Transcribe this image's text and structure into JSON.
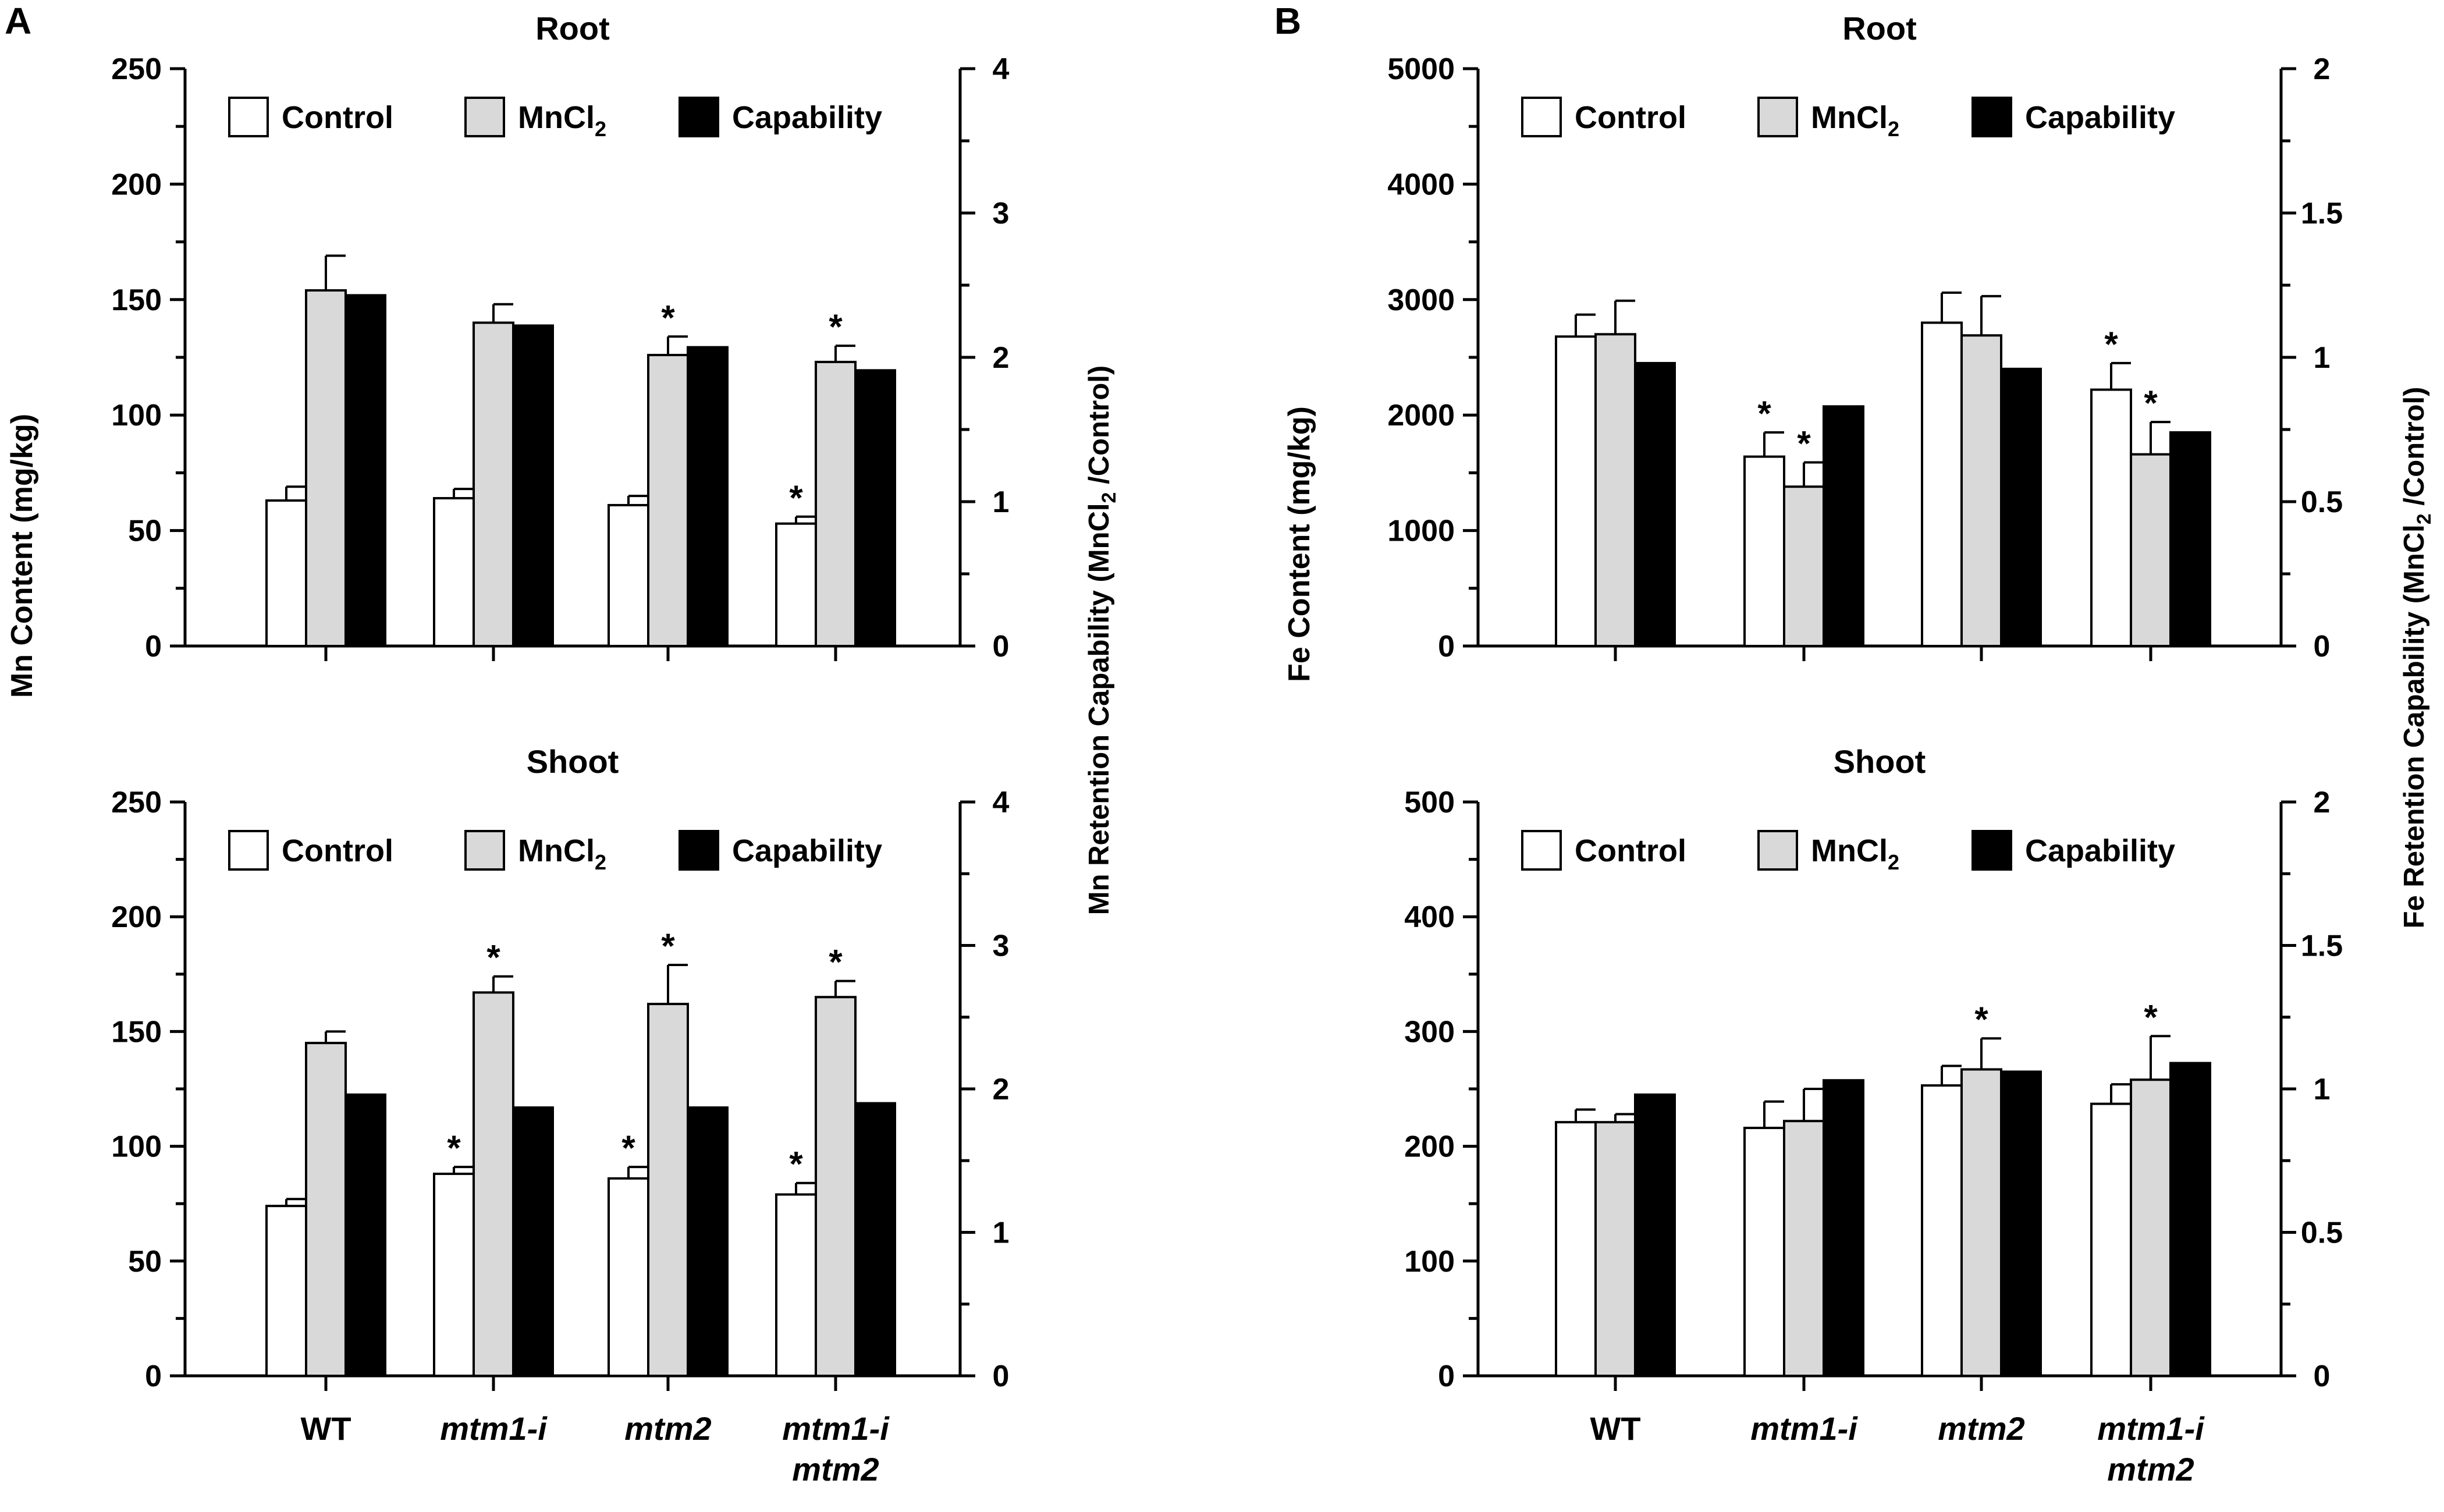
{
  "panel_labels": [
    "A",
    "B"
  ],
  "legend": {
    "control": "Control",
    "mncl2_base": "MnCl",
    "mncl2_sub": "2",
    "capability": "Capability"
  },
  "colors": {
    "control": "#ffffff",
    "mncl2": "#d9d9d9",
    "capability": "#000000",
    "axis": "#000000"
  },
  "genotypes": [
    {
      "line1": "WT",
      "line2": "",
      "italic": false
    },
    {
      "line1": "mtm1-i",
      "line2": "",
      "italic": true
    },
    {
      "line1": "mtm2",
      "line2": "",
      "italic": true
    },
    {
      "line1": "mtm1-i",
      "line2": "mtm2",
      "italic": true
    }
  ],
  "y_labels": {
    "mn_left": "Mn  Content (mg/kg)",
    "mn_right_a": "Mn Retention Capability (MnCl",
    "mn_right_sub": "2",
    "mn_right_b": " /Control)",
    "fe_left": "Fe Content (mg/kg)",
    "fe_right_a": "Fe Retention Capability (MnCl",
    "fe_right_sub": "2",
    "fe_right_b": " /Control)"
  },
  "chart_data": [
    {
      "id": "A-root",
      "panel": "A",
      "type": "bar",
      "title": "Root",
      "categories": [
        "WT",
        "mtm1-i",
        "mtm2",
        "mtm1-i mtm2"
      ],
      "ylim_left": [
        0,
        250
      ],
      "yticks_left": [
        0,
        50,
        100,
        150,
        200,
        250
      ],
      "ylim_right": [
        0,
        4
      ],
      "yticks_right": [
        0,
        1,
        2,
        3,
        4
      ],
      "series": [
        {
          "name": "Control",
          "axis": "left",
          "values": [
            63,
            64,
            61,
            53
          ],
          "errors": [
            6,
            4,
            4,
            3
          ],
          "significant": [
            false,
            false,
            false,
            true
          ]
        },
        {
          "name": "MnCl2",
          "axis": "left",
          "values": [
            154,
            140,
            126,
            123
          ],
          "errors": [
            15,
            8,
            8,
            7
          ],
          "significant": [
            false,
            false,
            true,
            true
          ]
        },
        {
          "name": "Capability",
          "axis": "right",
          "values": [
            2.43,
            2.22,
            2.07,
            1.91
          ],
          "errors": [
            0,
            0,
            0,
            0
          ],
          "significant": [
            false,
            false,
            false,
            false
          ]
        }
      ]
    },
    {
      "id": "A-shoot",
      "panel": "A",
      "type": "bar",
      "title": "Shoot",
      "categories": [
        "WT",
        "mtm1-i",
        "mtm2",
        "mtm1-i mtm2"
      ],
      "ylim_left": [
        0,
        250
      ],
      "yticks_left": [
        0,
        50,
        100,
        150,
        200,
        250
      ],
      "ylim_right": [
        0,
        4
      ],
      "yticks_right": [
        0,
        1,
        2,
        3,
        4
      ],
      "series": [
        {
          "name": "Control",
          "axis": "left",
          "values": [
            74,
            88,
            86,
            79
          ],
          "errors": [
            3,
            3,
            5,
            5
          ],
          "significant": [
            false,
            true,
            true,
            true
          ]
        },
        {
          "name": "MnCl2",
          "axis": "left",
          "values": [
            145,
            167,
            162,
            165
          ],
          "errors": [
            5,
            7,
            17,
            7
          ],
          "significant": [
            false,
            true,
            true,
            true
          ]
        },
        {
          "name": "Capability",
          "axis": "right",
          "values": [
            1.96,
            1.87,
            1.87,
            1.9
          ],
          "errors": [
            0,
            0,
            0,
            0
          ],
          "significant": [
            false,
            false,
            false,
            false
          ]
        }
      ]
    },
    {
      "id": "B-root",
      "panel": "B",
      "type": "bar",
      "title": "Root",
      "categories": [
        "WT",
        "mtm1-i",
        "mtm2",
        "mtm1-i mtm2"
      ],
      "ylim_left": [
        0,
        5000
      ],
      "yticks_left": [
        0,
        1000,
        2000,
        3000,
        4000,
        5000
      ],
      "ylim_right": [
        0,
        2
      ],
      "yticks_right": [
        0,
        0.5,
        1,
        1.5,
        2
      ],
      "series": [
        {
          "name": "Control",
          "axis": "left",
          "values": [
            2680,
            1640,
            2800,
            2220
          ],
          "errors": [
            190,
            210,
            260,
            230
          ],
          "significant": [
            false,
            true,
            false,
            true
          ]
        },
        {
          "name": "MnCl2",
          "axis": "left",
          "values": [
            2700,
            1380,
            2690,
            1660
          ],
          "errors": [
            290,
            210,
            340,
            280
          ],
          "significant": [
            false,
            true,
            false,
            true
          ]
        },
        {
          "name": "Capability",
          "axis": "right",
          "values": [
            0.98,
            0.83,
            0.96,
            0.74
          ],
          "errors": [
            0,
            0,
            0,
            0
          ],
          "significant": [
            false,
            false,
            false,
            false
          ]
        }
      ]
    },
    {
      "id": "B-shoot",
      "panel": "B",
      "type": "bar",
      "title": "Shoot",
      "categories": [
        "WT",
        "mtm1-i",
        "mtm2",
        "mtm1-i mtm2"
      ],
      "ylim_left": [
        0,
        500
      ],
      "yticks_left": [
        0,
        100,
        200,
        300,
        400,
        500
      ],
      "ylim_right": [
        0,
        2
      ],
      "yticks_right": [
        0,
        0.5,
        1,
        1.5,
        2
      ],
      "series": [
        {
          "name": "Control",
          "axis": "left",
          "values": [
            221,
            216,
            253,
            237
          ],
          "errors": [
            11,
            23,
            17,
            17
          ],
          "significant": [
            false,
            false,
            false,
            false
          ]
        },
        {
          "name": "MnCl2",
          "axis": "left",
          "values": [
            221,
            222,
            267,
            258
          ],
          "errors": [
            7,
            28,
            27,
            38
          ],
          "significant": [
            false,
            false,
            true,
            true
          ]
        },
        {
          "name": "Capability",
          "axis": "right",
          "values": [
            0.98,
            1.03,
            1.06,
            1.09
          ],
          "errors": [
            0,
            0,
            0,
            0
          ],
          "significant": [
            false,
            false,
            false,
            false
          ]
        }
      ]
    }
  ]
}
